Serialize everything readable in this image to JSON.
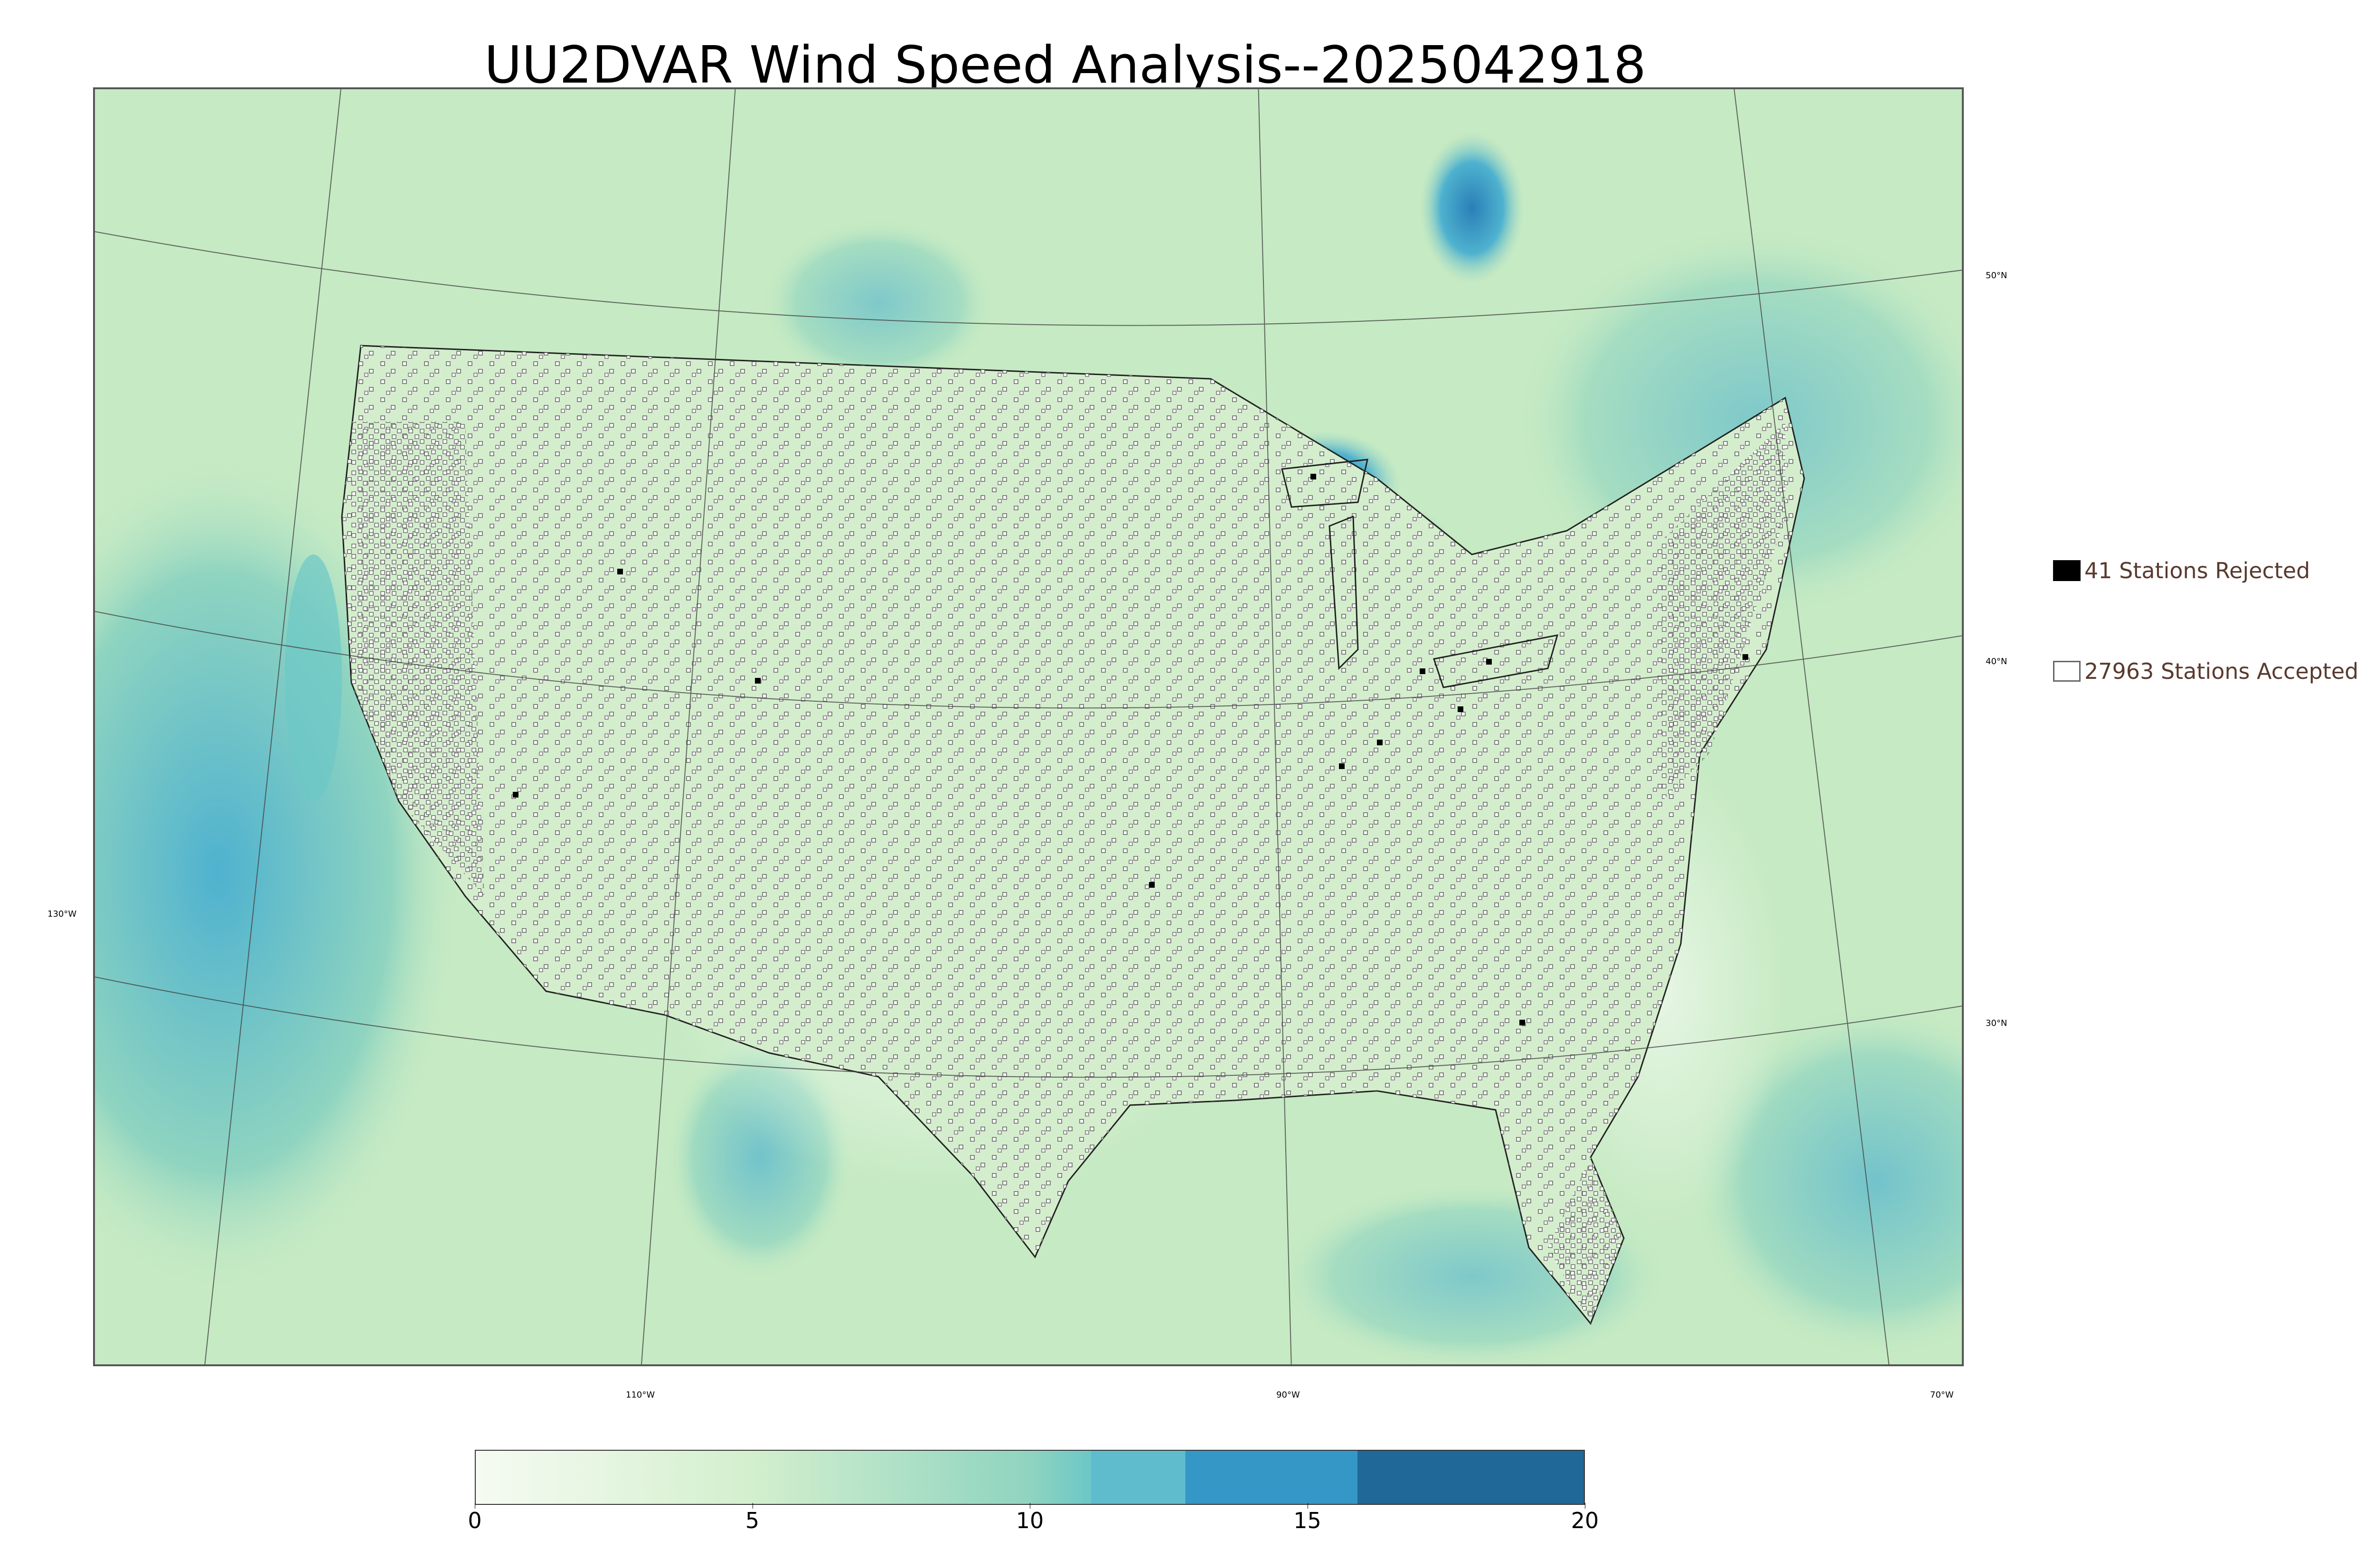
{
  "title": "UU2DVAR Wind Speed Analysis--2025042918",
  "map": {
    "type": "wind-speed analysis map with observation stations",
    "region": "Contiguous United States",
    "longitude_labels": [
      "110°W",
      "90°W",
      "70°W",
      "130°W"
    ],
    "latitude_labels": [
      "50°N",
      "40°N",
      "30°N"
    ]
  },
  "legend": {
    "rejected_label": "41 Stations Rejected",
    "accepted_label": "27963 Stations Accepted",
    "rejected_color": "#000000",
    "accepted_fill": "#ffffff"
  },
  "colorbar": {
    "ticks": [
      "0",
      "5",
      "10",
      "15",
      "20"
    ],
    "min": 0,
    "max": 20,
    "stops": [
      {
        "value": 0,
        "color": "#f6fbf2"
      },
      {
        "value": 5,
        "color": "#d3efcd"
      },
      {
        "value": 10,
        "color": "#8fd4c0"
      },
      {
        "value": 11.1,
        "color": "#6cc7c6"
      },
      {
        "value": 12.8,
        "color": "#4fb2cf"
      },
      {
        "value": 15.9,
        "color": "#2a8cbe"
      },
      {
        "value": 20,
        "color": "#1f6a9c"
      }
    ],
    "bands": [
      {
        "from": 11.1,
        "to": 12.8,
        "color": "#5fbccc"
      },
      {
        "from": 12.8,
        "to": 15.9,
        "color": "#3497c6"
      },
      {
        "from": 15.9,
        "to": 20,
        "color": "#1f6898"
      }
    ]
  }
}
